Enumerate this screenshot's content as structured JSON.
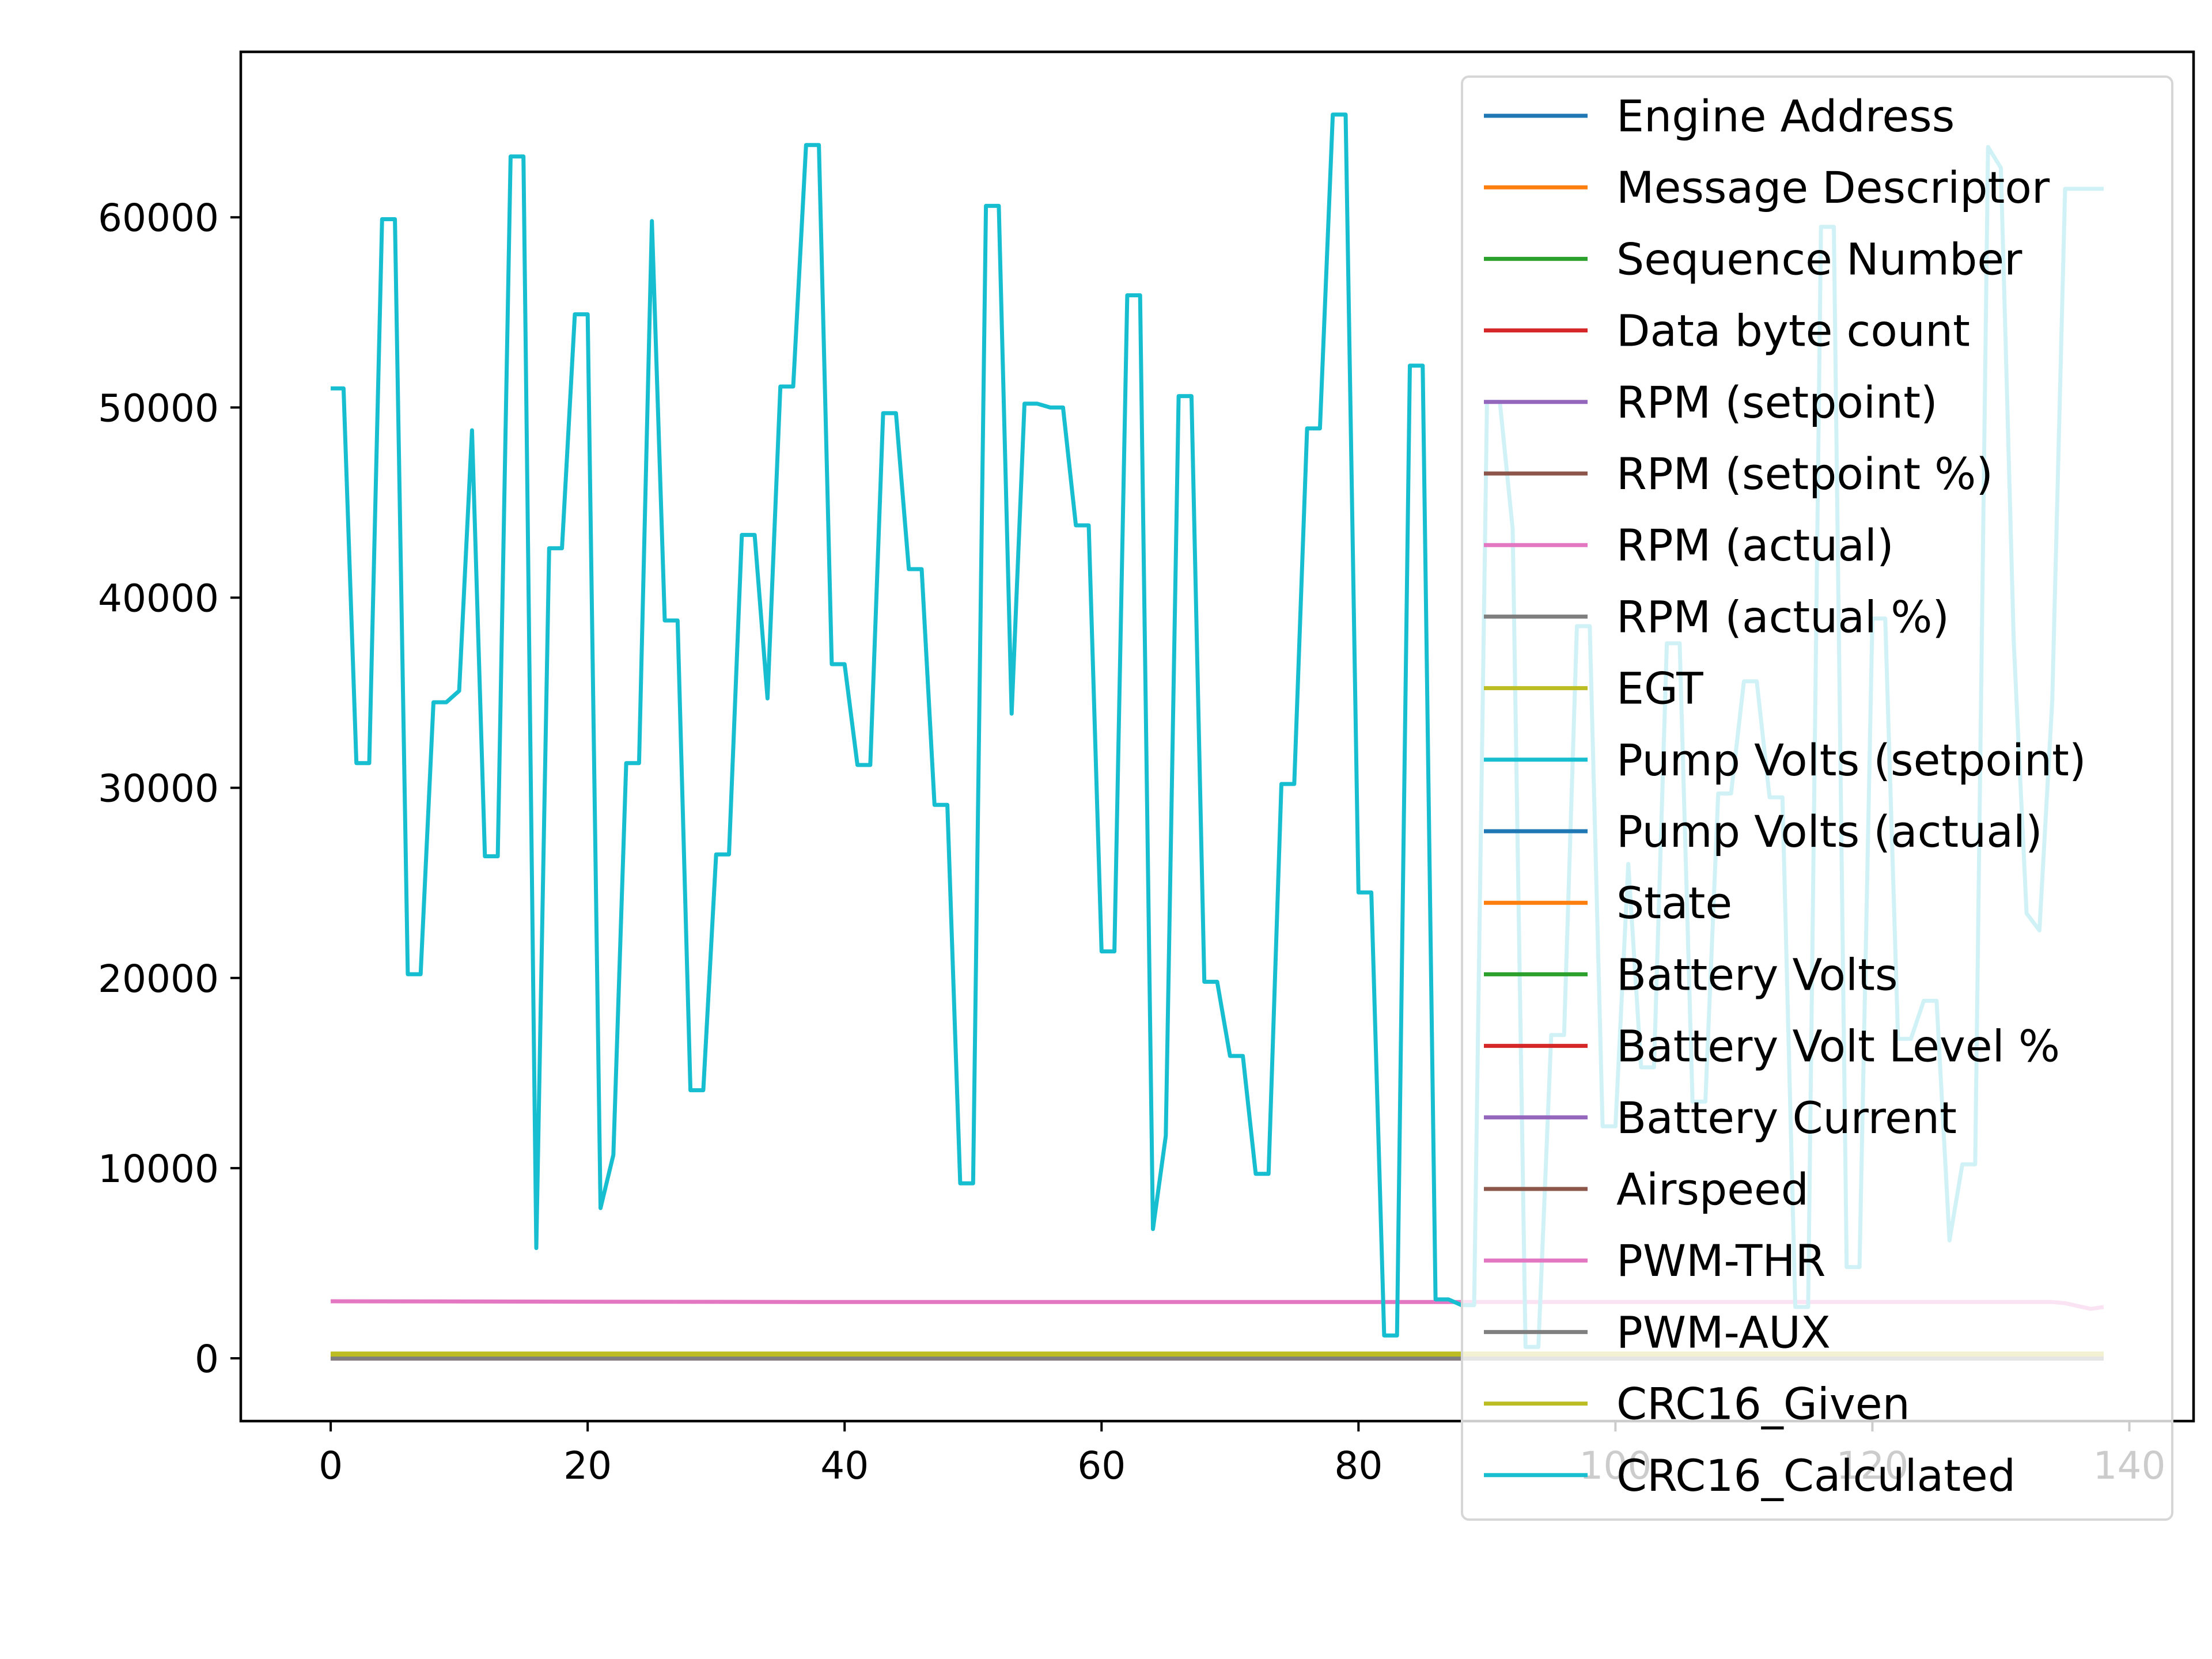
{
  "chart_data": {
    "type": "line",
    "title": "",
    "xlabel": "",
    "ylabel": "",
    "xlim": [
      -7,
      145
    ],
    "ylim": [
      -3300,
      68700
    ],
    "xticks": [
      0,
      20,
      40,
      60,
      80,
      100,
      120,
      140
    ],
    "yticks": [
      0,
      10000,
      20000,
      30000,
      40000,
      50000,
      60000
    ],
    "grid": false,
    "legend_position": "upper-right",
    "legend": [
      {
        "label": "Engine Address",
        "color": "#1f77b4"
      },
      {
        "label": "Message Descriptor",
        "color": "#ff7f0e"
      },
      {
        "label": "Sequence Number",
        "color": "#2ca02c"
      },
      {
        "label": "Data byte count",
        "color": "#d62728"
      },
      {
        "label": "RPM (setpoint)",
        "color": "#9467bd"
      },
      {
        "label": "RPM (setpoint %)",
        "color": "#8c564b"
      },
      {
        "label": "RPM (actual)",
        "color": "#e377c2"
      },
      {
        "label": "RPM (actual %)",
        "color": "#7f7f7f"
      },
      {
        "label": "EGT",
        "color": "#bcbd22"
      },
      {
        "label": "Pump Volts (setpoint)",
        "color": "#17becf"
      },
      {
        "label": "Pump Volts (actual)",
        "color": "#1f77b4"
      },
      {
        "label": "State",
        "color": "#ff7f0e"
      },
      {
        "label": "Battery Volts",
        "color": "#2ca02c"
      },
      {
        "label": "Battery Volt Level %",
        "color": "#d62728"
      },
      {
        "label": "Battery Current",
        "color": "#9467bd"
      },
      {
        "label": "Airspeed",
        "color": "#8c564b"
      },
      {
        "label": "PWM-THR",
        "color": "#e377c2"
      },
      {
        "label": "PWM-AUX",
        "color": "#7f7f7f"
      },
      {
        "label": "CRC16_Given",
        "color": "#bcbd22"
      },
      {
        "label": "CRC16_Calculated",
        "color": "#17becf"
      }
    ],
    "series": [
      {
        "name": "Engine Address",
        "color": "#1f77b4",
        "x": [
          0,
          138
        ],
        "y": [
          1,
          1
        ]
      },
      {
        "name": "Message Descriptor",
        "color": "#ff7f0e",
        "x": [
          0,
          138
        ],
        "y": [
          1,
          1
        ]
      },
      {
        "name": "Sequence Number",
        "color": "#2ca02c",
        "x": [
          0,
          138
        ],
        "y": [
          60,
          60
        ]
      },
      {
        "name": "Data byte count",
        "color": "#d62728",
        "x": [
          0,
          138
        ],
        "y": [
          20,
          20
        ]
      },
      {
        "name": "RPM (setpoint)",
        "color": "#9467bd",
        "x": [
          0,
          138
        ],
        "y": [
          0,
          0
        ]
      },
      {
        "name": "RPM (setpoint %)",
        "color": "#8c564b",
        "x": [
          0,
          138
        ],
        "y": [
          0,
          0
        ]
      },
      {
        "name": "RPM (actual)",
        "color": "#e377c2",
        "x": [
          0,
          138
        ],
        "y": [
          0,
          0
        ]
      },
      {
        "name": "RPM (actual %)",
        "color": "#7f7f7f",
        "x": [
          0,
          138
        ],
        "y": [
          0,
          0
        ]
      },
      {
        "name": "EGT",
        "color": "#bcbd22",
        "x": [
          0,
          138
        ],
        "y": [
          250,
          250
        ]
      },
      {
        "name": "Pump Volts (setpoint)",
        "color": "#17becf",
        "x": [
          0,
          138
        ],
        "y": [
          0,
          0
        ]
      },
      {
        "name": "Pump Volts (actual)",
        "color": "#1f77b4",
        "x": [
          0,
          138
        ],
        "y": [
          0,
          0
        ]
      },
      {
        "name": "State",
        "color": "#ff7f0e",
        "x": [
          0,
          138
        ],
        "y": [
          0,
          0
        ]
      },
      {
        "name": "Battery Volts",
        "color": "#2ca02c",
        "x": [
          0,
          138
        ],
        "y": [
          12,
          12
        ]
      },
      {
        "name": "Battery Volt Level %",
        "color": "#d62728",
        "x": [
          0,
          138
        ],
        "y": [
          0,
          0
        ]
      },
      {
        "name": "Battery Current",
        "color": "#9467bd",
        "x": [
          0,
          138
        ],
        "y": [
          0,
          0
        ]
      },
      {
        "name": "Airspeed",
        "color": "#8c564b",
        "x": [
          0,
          138
        ],
        "y": [
          0,
          0
        ]
      },
      {
        "name": "PWM-THR",
        "color": "#e377c2",
        "x": [
          0,
          20,
          40,
          60,
          80,
          100,
          120,
          134,
          135,
          136,
          137,
          138
        ],
        "y": [
          3000,
          2980,
          2960,
          2960,
          2960,
          2960,
          2960,
          2960,
          2900,
          2750,
          2600,
          2700
        ]
      },
      {
        "name": "PWM-AUX",
        "color": "#7f7f7f",
        "x": [
          0,
          138
        ],
        "y": [
          0,
          0
        ]
      },
      {
        "name": "CRC16_Given",
        "color": "#bcbd22",
        "x": [
          0,
          138
        ],
        "y": [
          200,
          200
        ]
      },
      {
        "name": "CRC16_Calculated",
        "color": "#17becf",
        "x": [
          0,
          1,
          2,
          3,
          4,
          5,
          6,
          7,
          8,
          9,
          10,
          11,
          12,
          13,
          14,
          15,
          16,
          17,
          18,
          19,
          20,
          21,
          22,
          23,
          24,
          25,
          26,
          27,
          28,
          29,
          30,
          31,
          32,
          33,
          34,
          35,
          36,
          37,
          38,
          39,
          40,
          41,
          42,
          43,
          44,
          45,
          46,
          47,
          48,
          49,
          50,
          51,
          52,
          53,
          54,
          55,
          56,
          57,
          58,
          59,
          60,
          61,
          62,
          63,
          64,
          65,
          66,
          67,
          68,
          69,
          70,
          71,
          72,
          73,
          74,
          75,
          76,
          77,
          78,
          79,
          80,
          81,
          82,
          83,
          84,
          85,
          86,
          87,
          88,
          89,
          90,
          91,
          92,
          93,
          94,
          95,
          96,
          97,
          98,
          99,
          100,
          101,
          102,
          103,
          104,
          105,
          106,
          107,
          108,
          109,
          110,
          111,
          112,
          113,
          114,
          115,
          116,
          117,
          118,
          119,
          120,
          121,
          122,
          123,
          124,
          125,
          126,
          127,
          128,
          129,
          130,
          131,
          132,
          133,
          134,
          135,
          136,
          137,
          138
        ],
        "y": [
          51000,
          51000,
          31300,
          31300,
          59900,
          59900,
          20200,
          20200,
          34500,
          34500,
          35100,
          48800,
          26400,
          26400,
          63200,
          63200,
          5800,
          42600,
          42600,
          54900,
          54900,
          7900,
          10700,
          31300,
          31300,
          59800,
          38800,
          38800,
          14100,
          14100,
          26500,
          26500,
          43300,
          43300,
          34700,
          51100,
          51100,
          63800,
          63800,
          36500,
          36500,
          31200,
          31200,
          49700,
          49700,
          41500,
          41500,
          29100,
          29100,
          9200,
          9200,
          60600,
          60600,
          33900,
          50200,
          50200,
          50000,
          50000,
          43800,
          43800,
          21400,
          21400,
          55900,
          55900,
          6800,
          11700,
          50600,
          50600,
          19800,
          19800,
          15900,
          15900,
          9700,
          9700,
          30200,
          30200,
          48900,
          48900,
          65400,
          65400,
          24500,
          24500,
          1200,
          1200,
          52200,
          52200,
          3100,
          3100,
          2800,
          2800,
          50300,
          50300,
          43600,
          600,
          600,
          17000,
          17000,
          38500,
          38500,
          12200,
          12200,
          26000,
          15300,
          15300,
          37600,
          37600,
          13500,
          13500,
          29700,
          29700,
          35600,
          35600,
          29500,
          29500,
          2700,
          2700,
          59500,
          59500,
          4800,
          4800,
          38900,
          38900,
          16800,
          16800,
          18800,
          18800,
          6200,
          10200,
          10200,
          63700,
          62600,
          37700,
          23400,
          22500,
          34600,
          61500,
          61500,
          61500,
          61500
        ]
      }
    ]
  }
}
